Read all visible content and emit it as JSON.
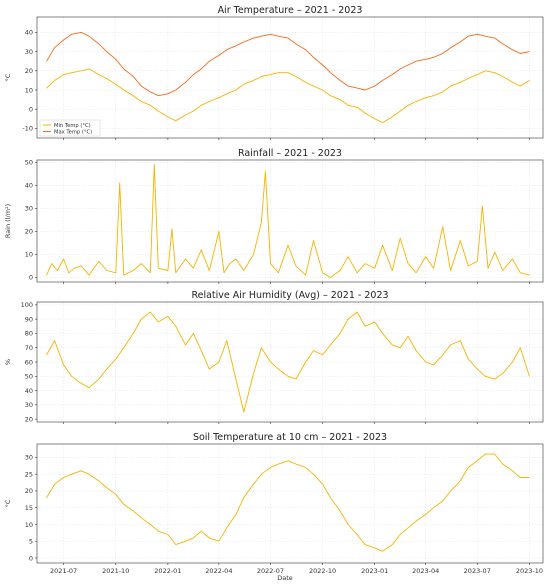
{
  "figure": {
    "xlabel": "Date"
  },
  "colors": {
    "min_temp": "#f5b400",
    "max_temp": "#f26b1d",
    "single": "#f5b400",
    "grid": "#e2e2e2"
  },
  "chart_data": [
    {
      "type": "line",
      "title": "Air Temperature – 2021 - 2023",
      "ylabel": "°C",
      "ylim": [
        -15,
        48
      ],
      "yticks": [
        -10,
        0,
        10,
        20,
        30,
        40
      ],
      "grid": true,
      "legend": {
        "placement": "lower-left",
        "entries": [
          "Min Temp (°C)",
          "Max Temp (°C)"
        ]
      },
      "series": [
        {
          "name": "Min Temp (°C)",
          "color": "#f5b400",
          "x": [
            "2021-06-01",
            "2021-06-15",
            "2021-07-01",
            "2021-07-15",
            "2021-08-01",
            "2021-08-15",
            "2021-09-01",
            "2021-09-15",
            "2021-10-01",
            "2021-10-15",
            "2021-11-01",
            "2021-11-15",
            "2021-12-01",
            "2021-12-15",
            "2022-01-01",
            "2022-01-15",
            "2022-02-01",
            "2022-02-15",
            "2022-03-01",
            "2022-03-15",
            "2022-04-01",
            "2022-04-15",
            "2022-05-01",
            "2022-05-15",
            "2022-06-01",
            "2022-06-15",
            "2022-07-01",
            "2022-07-15",
            "2022-08-01",
            "2022-08-15",
            "2022-09-01",
            "2022-09-15",
            "2022-10-01",
            "2022-10-15",
            "2022-11-01",
            "2022-11-15",
            "2022-12-01",
            "2022-12-15",
            "2023-01-01",
            "2023-01-15",
            "2023-02-01",
            "2023-02-15",
            "2023-03-01",
            "2023-03-15",
            "2023-04-01",
            "2023-04-15",
            "2023-05-01",
            "2023-05-15",
            "2023-06-01",
            "2023-06-15",
            "2023-07-01",
            "2023-07-15",
            "2023-08-01",
            "2023-08-15",
            "2023-09-01",
            "2023-09-15",
            "2023-10-01"
          ],
          "values": [
            11,
            15,
            18,
            19,
            20,
            21,
            18,
            16,
            13,
            10,
            7,
            4,
            2,
            -1,
            -4,
            -6,
            -3,
            -1,
            2,
            4,
            6,
            8,
            10,
            13,
            15,
            17,
            18,
            19,
            19,
            17,
            14,
            12,
            10,
            7,
            5,
            2,
            1,
            -2,
            -5,
            -7,
            -4,
            -1,
            2,
            4,
            6,
            7,
            9,
            12,
            14,
            16,
            18,
            20,
            19,
            17,
            14,
            12,
            15
          ]
        },
        {
          "name": "Max Temp (°C)",
          "color": "#f26b1d",
          "x": [
            "2021-06-01",
            "2021-06-15",
            "2021-07-01",
            "2021-07-15",
            "2021-08-01",
            "2021-08-15",
            "2021-09-01",
            "2021-09-15",
            "2021-10-01",
            "2021-10-15",
            "2021-11-01",
            "2021-11-15",
            "2021-12-01",
            "2021-12-15",
            "2022-01-01",
            "2022-01-15",
            "2022-02-01",
            "2022-02-15",
            "2022-03-01",
            "2022-03-15",
            "2022-04-01",
            "2022-04-15",
            "2022-05-01",
            "2022-05-15",
            "2022-06-01",
            "2022-06-15",
            "2022-07-01",
            "2022-07-15",
            "2022-08-01",
            "2022-08-15",
            "2022-09-01",
            "2022-09-15",
            "2022-10-01",
            "2022-10-15",
            "2022-11-01",
            "2022-11-15",
            "2022-12-01",
            "2022-12-15",
            "2023-01-01",
            "2023-01-15",
            "2023-02-01",
            "2023-02-15",
            "2023-03-01",
            "2023-03-15",
            "2023-04-01",
            "2023-04-15",
            "2023-05-01",
            "2023-05-15",
            "2023-06-01",
            "2023-06-15",
            "2023-07-01",
            "2023-07-15",
            "2023-08-01",
            "2023-08-15",
            "2023-09-01",
            "2023-09-15",
            "2023-10-01"
          ],
          "values": [
            25,
            32,
            36,
            39,
            40,
            38,
            34,
            30,
            26,
            21,
            17,
            12,
            9,
            7,
            8,
            10,
            14,
            18,
            21,
            25,
            28,
            31,
            33,
            35,
            37,
            38,
            39,
            38,
            37,
            34,
            31,
            27,
            23,
            19,
            15,
            12,
            11,
            10,
            12,
            15,
            18,
            21,
            23,
            25,
            26,
            27,
            29,
            32,
            35,
            38,
            39,
            38,
            37,
            34,
            31,
            29,
            30
          ]
        }
      ]
    },
    {
      "type": "line",
      "title": "Rainfall – 2021 - 2023",
      "ylabel": "Rain (l/m²)",
      "ylim": [
        -2,
        51
      ],
      "yticks": [
        0,
        10,
        20,
        30,
        40,
        50
      ],
      "grid": true,
      "series": [
        {
          "color": "#f5b400",
          "x": [
            "2021-06-01",
            "2021-06-10",
            "2021-06-20",
            "2021-07-01",
            "2021-07-10",
            "2021-07-20",
            "2021-08-01",
            "2021-08-15",
            "2021-09-01",
            "2021-09-15",
            "2021-10-01",
            "2021-10-08",
            "2021-10-15",
            "2021-11-01",
            "2021-11-15",
            "2021-12-01",
            "2021-12-08",
            "2021-12-15",
            "2022-01-01",
            "2022-01-08",
            "2022-01-15",
            "2022-02-01",
            "2022-02-15",
            "2022-03-01",
            "2022-03-15",
            "2022-04-01",
            "2022-04-10",
            "2022-04-20",
            "2022-05-01",
            "2022-05-15",
            "2022-06-01",
            "2022-06-15",
            "2022-06-22",
            "2022-07-01",
            "2022-07-15",
            "2022-08-01",
            "2022-08-15",
            "2022-09-01",
            "2022-09-15",
            "2022-10-01",
            "2022-10-15",
            "2022-11-01",
            "2022-11-15",
            "2022-12-01",
            "2022-12-15",
            "2023-01-01",
            "2023-01-15",
            "2023-02-01",
            "2023-02-15",
            "2023-03-01",
            "2023-03-15",
            "2023-04-01",
            "2023-04-15",
            "2023-05-01",
            "2023-05-15",
            "2023-06-01",
            "2023-06-15",
            "2023-07-01",
            "2023-07-10",
            "2023-07-20",
            "2023-08-01",
            "2023-08-15",
            "2023-09-01",
            "2023-09-15",
            "2023-10-01"
          ],
          "values": [
            1,
            6,
            3,
            8,
            2,
            4,
            5,
            1,
            7,
            3,
            2,
            41,
            1,
            3,
            6,
            2,
            49,
            4,
            3,
            21,
            2,
            8,
            4,
            12,
            3,
            20,
            2,
            6,
            8,
            3,
            10,
            24,
            46,
            6,
            2,
            14,
            5,
            1,
            16,
            2,
            0,
            3,
            9,
            2,
            6,
            4,
            14,
            3,
            17,
            6,
            2,
            9,
            4,
            22,
            3,
            16,
            5,
            7,
            31,
            4,
            11,
            3,
            8,
            2,
            1
          ]
        }
      ]
    },
    {
      "type": "line",
      "title": "Relative Air Humidity (Avg) – 2021 - 2023",
      "ylabel": "%",
      "ylim": [
        18,
        102
      ],
      "yticks": [
        20,
        30,
        40,
        50,
        60,
        70,
        80,
        90,
        100
      ],
      "grid": true,
      "series": [
        {
          "color": "#f5b400",
          "x": [
            "2021-06-01",
            "2021-06-15",
            "2021-07-01",
            "2021-07-15",
            "2021-08-01",
            "2021-08-15",
            "2021-09-01",
            "2021-09-15",
            "2021-10-01",
            "2021-10-15",
            "2021-11-01",
            "2021-11-15",
            "2021-12-01",
            "2021-12-15",
            "2022-01-01",
            "2022-01-15",
            "2022-02-01",
            "2022-02-15",
            "2022-03-01",
            "2022-03-15",
            "2022-04-01",
            "2022-04-15",
            "2022-05-01",
            "2022-05-15",
            "2022-06-01",
            "2022-06-15",
            "2022-07-01",
            "2022-07-15",
            "2022-08-01",
            "2022-08-15",
            "2022-09-01",
            "2022-09-15",
            "2022-10-01",
            "2022-10-15",
            "2022-11-01",
            "2022-11-15",
            "2022-12-01",
            "2022-12-15",
            "2023-01-01",
            "2023-01-15",
            "2023-02-01",
            "2023-02-15",
            "2023-03-01",
            "2023-03-15",
            "2023-04-01",
            "2023-04-15",
            "2023-05-01",
            "2023-05-15",
            "2023-06-01",
            "2023-06-15",
            "2023-07-01",
            "2023-07-15",
            "2023-08-01",
            "2023-08-15",
            "2023-09-01",
            "2023-09-15",
            "2023-10-01"
          ],
          "values": [
            65,
            75,
            58,
            50,
            45,
            42,
            48,
            55,
            62,
            70,
            80,
            90,
            95,
            88,
            92,
            85,
            72,
            80,
            68,
            55,
            60,
            75,
            48,
            25,
            52,
            70,
            60,
            55,
            50,
            48,
            60,
            68,
            65,
            72,
            80,
            90,
            95,
            85,
            88,
            80,
            72,
            70,
            78,
            68,
            60,
            58,
            65,
            72,
            75,
            62,
            55,
            50,
            48,
            52,
            60,
            70,
            50
          ]
        }
      ]
    },
    {
      "type": "line",
      "title": "Soil Temperature at 10 cm – 2021 - 2023",
      "ylabel": "°C",
      "ylim": [
        -1.5,
        34
      ],
      "yticks": [
        0,
        5,
        10,
        15,
        20,
        25,
        30
      ],
      "grid": true,
      "series": [
        {
          "color": "#f5b400",
          "x": [
            "2021-06-01",
            "2021-06-15",
            "2021-07-01",
            "2021-07-15",
            "2021-08-01",
            "2021-08-15",
            "2021-09-01",
            "2021-09-15",
            "2021-10-01",
            "2021-10-15",
            "2021-11-01",
            "2021-11-15",
            "2021-12-01",
            "2021-12-15",
            "2022-01-01",
            "2022-01-15",
            "2022-02-01",
            "2022-02-15",
            "2022-03-01",
            "2022-03-15",
            "2022-04-01",
            "2022-04-15",
            "2022-05-01",
            "2022-05-15",
            "2022-06-01",
            "2022-06-15",
            "2022-07-01",
            "2022-07-15",
            "2022-08-01",
            "2022-08-15",
            "2022-09-01",
            "2022-09-15",
            "2022-10-01",
            "2022-10-15",
            "2022-11-01",
            "2022-11-15",
            "2022-12-01",
            "2022-12-15",
            "2023-01-01",
            "2023-01-15",
            "2023-02-01",
            "2023-02-15",
            "2023-03-01",
            "2023-03-15",
            "2023-04-01",
            "2023-04-15",
            "2023-05-01",
            "2023-05-15",
            "2023-06-01",
            "2023-06-15",
            "2023-07-01",
            "2023-07-15",
            "2023-08-01",
            "2023-08-15",
            "2023-09-01",
            "2023-09-15",
            "2023-10-01"
          ],
          "values": [
            18,
            22,
            24,
            25,
            26,
            25,
            23,
            21,
            19,
            16,
            14,
            12,
            10,
            8,
            7,
            4,
            5,
            6,
            8,
            6,
            5,
            9,
            13,
            18,
            22,
            25,
            27,
            28,
            29,
            28,
            27,
            25,
            22,
            18,
            14,
            10,
            7,
            4,
            3,
            2,
            4,
            7,
            9,
            11,
            13,
            15,
            17,
            20,
            23,
            27,
            29,
            31,
            31,
            28,
            26,
            24,
            24
          ]
        }
      ]
    }
  ],
  "x_axis": {
    "min": "2021-05-15",
    "max": "2023-10-25",
    "tick_labels": [
      "2021-07",
      "2021-10",
      "2022-01",
      "2022-04",
      "2022-07",
      "2022-10",
      "2023-01",
      "2023-04",
      "2023-07",
      "2023-10"
    ]
  }
}
